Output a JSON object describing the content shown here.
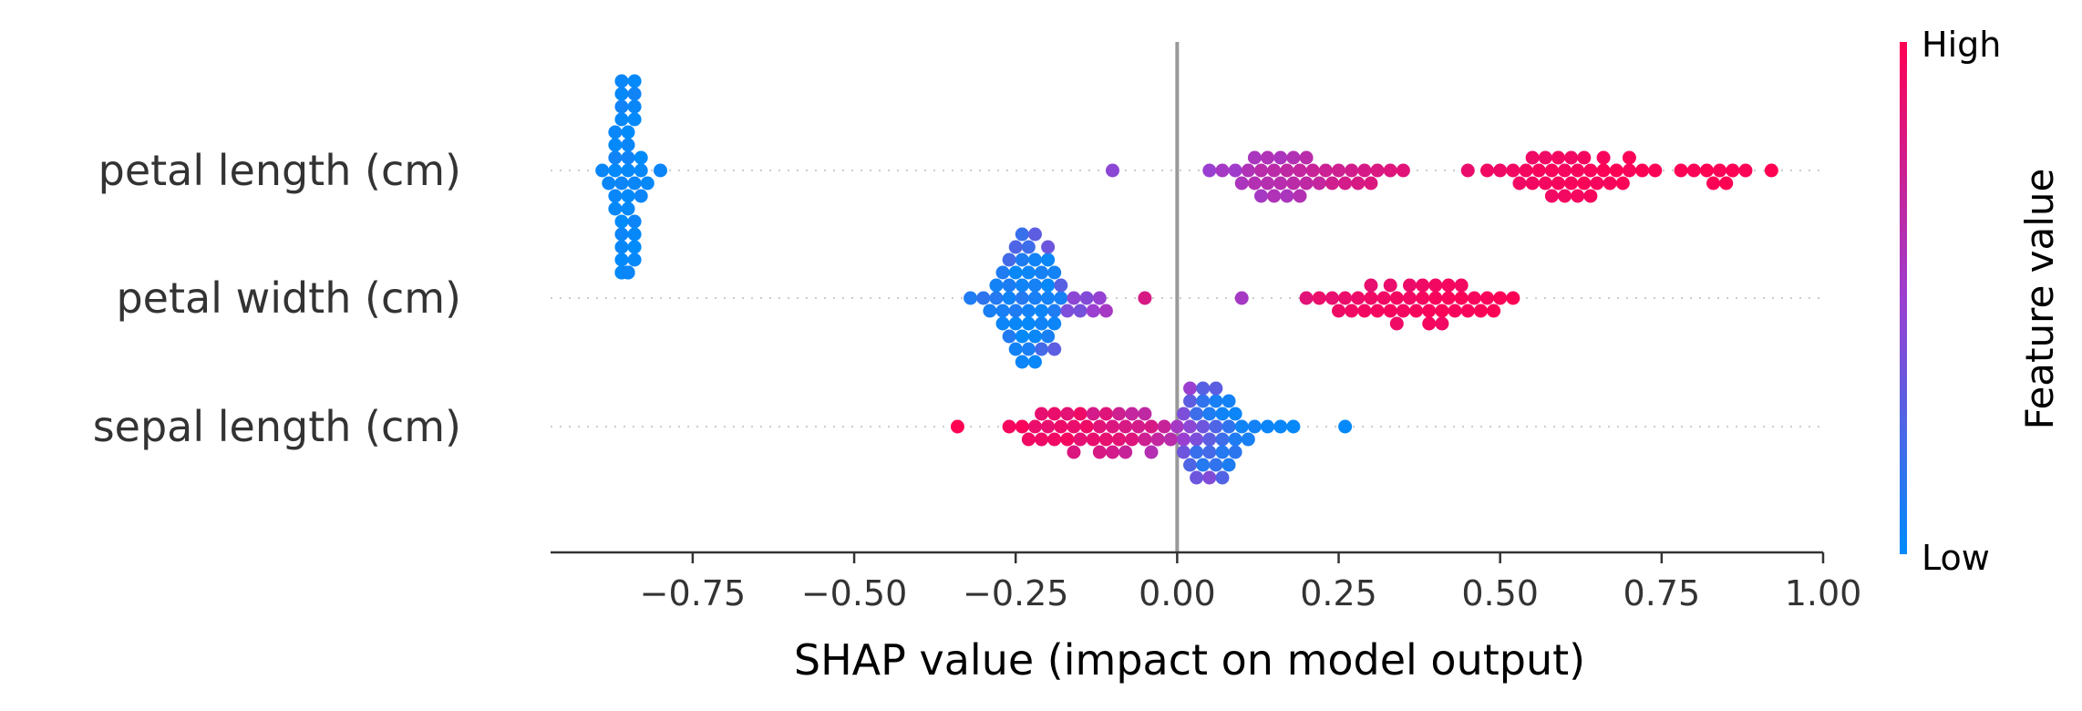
{
  "chart_data": {
    "type": "scatter",
    "subtype": "shap-beeswarm-summary",
    "title": "",
    "xlabel": "SHAP value (impact on model output)",
    "ylabel": "",
    "xlim": [
      -0.97,
      1.0
    ],
    "xticks": [
      -0.75,
      -0.5,
      -0.25,
      0.0,
      0.25,
      0.5,
      0.75,
      1.0
    ],
    "xtick_labels": [
      "−0.75",
      "−0.50",
      "−0.25",
      "0.00",
      "0.25",
      "0.50",
      "0.75",
      "1.00"
    ],
    "zero_line": 0.0,
    "grid": false,
    "colorbar": {
      "label": "Feature value",
      "high_label": "High",
      "low_label": "Low",
      "low_color": "#008bfb",
      "mid_color": "#9b3fd0",
      "high_color": "#ff0052"
    },
    "features": [
      {
        "name": "petal length (cm)",
        "points": [
          [
            -0.85,
            0.02
          ],
          [
            -0.86,
            0.04
          ],
          [
            -0.84,
            0.03
          ],
          [
            -0.87,
            0.01
          ],
          [
            -0.85,
            0.05
          ],
          [
            -0.83,
            0.02
          ],
          [
            -0.86,
            0.0
          ],
          [
            -0.88,
            0.03
          ],
          [
            -0.85,
            0.01
          ],
          [
            -0.84,
            0.04
          ],
          [
            -0.86,
            0.02
          ],
          [
            -0.87,
            0.05
          ],
          [
            -0.85,
            0.03
          ],
          [
            -0.83,
            0.0
          ],
          [
            -0.86,
            0.04
          ],
          [
            -0.84,
            0.01
          ],
          [
            -0.85,
            0.02
          ],
          [
            -0.87,
            0.03
          ],
          [
            -0.86,
            0.05
          ],
          [
            -0.85,
            0.0
          ],
          [
            -0.84,
            0.02
          ],
          [
            -0.86,
            0.03
          ],
          [
            -0.85,
            0.04
          ],
          [
            -0.87,
            0.01
          ],
          [
            -0.84,
            0.03
          ],
          [
            -0.86,
            0.02
          ],
          [
            -0.85,
            0.05
          ],
          [
            -0.83,
            0.04
          ],
          [
            -0.86,
            0.01
          ],
          [
            -0.85,
            0.03
          ],
          [
            -0.84,
            0.0
          ],
          [
            -0.87,
            0.02
          ],
          [
            -0.85,
            0.04
          ],
          [
            -0.86,
            0.03
          ],
          [
            -0.84,
            0.05
          ],
          [
            -0.85,
            0.01
          ],
          [
            -0.86,
            0.02
          ],
          [
            -0.85,
            0.03
          ],
          [
            -0.84,
            0.02
          ],
          [
            -0.86,
            0.04
          ],
          [
            -0.85,
            0.0
          ],
          [
            -0.87,
            0.03
          ],
          [
            -0.84,
            0.01
          ],
          [
            -0.86,
            0.05
          ],
          [
            -0.85,
            0.02
          ],
          [
            -0.89,
            0.03
          ],
          [
            -0.82,
            0.02
          ],
          [
            -0.8,
            0.04
          ],
          [
            -0.85,
            0.03
          ],
          [
            -0.86,
            0.01
          ],
          [
            -0.1,
            0.45
          ],
          [
            0.05,
            0.5
          ],
          [
            0.07,
            0.55
          ],
          [
            0.09,
            0.52
          ],
          [
            0.1,
            0.58
          ],
          [
            0.11,
            0.6
          ],
          [
            0.12,
            0.62
          ],
          [
            0.13,
            0.65
          ],
          [
            0.14,
            0.63
          ],
          [
            0.15,
            0.66
          ],
          [
            0.16,
            0.64
          ],
          [
            0.17,
            0.68
          ],
          [
            0.18,
            0.66
          ],
          [
            0.19,
            0.7
          ],
          [
            0.2,
            0.68
          ],
          [
            0.21,
            0.72
          ],
          [
            0.22,
            0.7
          ],
          [
            0.13,
            0.55
          ],
          [
            0.15,
            0.6
          ],
          [
            0.17,
            0.58
          ],
          [
            0.19,
            0.62
          ],
          [
            0.23,
            0.74
          ],
          [
            0.24,
            0.76
          ],
          [
            0.25,
            0.75
          ],
          [
            0.26,
            0.78
          ],
          [
            0.27,
            0.77
          ],
          [
            0.28,
            0.8
          ],
          [
            0.29,
            0.79
          ],
          [
            0.3,
            0.82
          ],
          [
            0.31,
            0.81
          ],
          [
            0.33,
            0.83
          ],
          [
            0.35,
            0.85
          ],
          [
            0.14,
            0.6
          ],
          [
            0.16,
            0.58
          ],
          [
            0.18,
            0.61
          ],
          [
            0.12,
            0.57
          ],
          [
            0.2,
            0.65
          ],
          [
            0.45,
            0.9
          ],
          [
            0.48,
            0.93
          ],
          [
            0.5,
            0.92
          ],
          [
            0.52,
            0.94
          ],
          [
            0.53,
            0.93
          ],
          [
            0.54,
            0.95
          ],
          [
            0.55,
            0.94
          ],
          [
            0.56,
            0.96
          ],
          [
            0.57,
            0.95
          ],
          [
            0.58,
            0.97
          ],
          [
            0.59,
            0.96
          ],
          [
            0.6,
            0.95
          ],
          [
            0.61,
            0.97
          ],
          [
            0.62,
            0.96
          ],
          [
            0.63,
            0.98
          ],
          [
            0.64,
            0.97
          ],
          [
            0.65,
            0.96
          ],
          [
            0.66,
            0.98
          ],
          [
            0.67,
            0.97
          ],
          [
            0.68,
            0.99
          ],
          [
            0.69,
            0.98
          ],
          [
            0.7,
            0.97
          ],
          [
            0.72,
            0.99
          ],
          [
            0.74,
            0.98
          ],
          [
            0.58,
            0.93
          ],
          [
            0.6,
            0.94
          ],
          [
            0.62,
            0.95
          ],
          [
            0.64,
            0.96
          ],
          [
            0.57,
            0.92
          ],
          [
            0.61,
            0.93
          ],
          [
            0.59,
            0.94
          ],
          [
            0.63,
            0.95
          ],
          [
            0.78,
            0.99
          ],
          [
            0.8,
            0.98
          ],
          [
            0.82,
            1.0
          ],
          [
            0.83,
            0.99
          ],
          [
            0.84,
            0.98
          ],
          [
            0.85,
            1.0
          ],
          [
            0.86,
            0.99
          ],
          [
            0.88,
            0.98
          ],
          [
            0.92,
            1.0
          ],
          [
            0.55,
            0.92
          ],
          [
            0.66,
            0.96
          ],
          [
            0.7,
            0.98
          ]
        ]
      },
      {
        "name": "petal width (cm)",
        "points": [
          [
            -0.32,
            0.1
          ],
          [
            -0.3,
            0.15
          ],
          [
            -0.28,
            0.12
          ],
          [
            -0.27,
            0.08
          ],
          [
            -0.26,
            0.05
          ],
          [
            -0.25,
            0.1
          ],
          [
            -0.24,
            0.12
          ],
          [
            -0.23,
            0.06
          ],
          [
            -0.22,
            0.08
          ],
          [
            -0.21,
            0.04
          ],
          [
            -0.2,
            0.06
          ],
          [
            -0.19,
            0.1
          ],
          [
            -0.25,
            0.03
          ],
          [
            -0.24,
            0.05
          ],
          [
            -0.23,
            0.02
          ],
          [
            -0.22,
            0.07
          ],
          [
            -0.26,
            0.09
          ],
          [
            -0.27,
            0.04
          ],
          [
            -0.28,
            0.06
          ],
          [
            -0.29,
            0.08
          ],
          [
            -0.25,
            0.02
          ],
          [
            -0.24,
            0.01
          ],
          [
            -0.23,
            0.04
          ],
          [
            -0.22,
            0.03
          ],
          [
            -0.21,
            0.05
          ],
          [
            -0.2,
            0.02
          ],
          [
            -0.19,
            0.04
          ],
          [
            -0.18,
            0.07
          ],
          [
            -0.26,
            0.11
          ],
          [
            -0.24,
            0.09
          ],
          [
            -0.22,
            0.05
          ],
          [
            -0.2,
            0.08
          ],
          [
            -0.25,
            0.06
          ],
          [
            -0.23,
            0.08
          ],
          [
            -0.21,
            0.07
          ],
          [
            -0.27,
            0.1
          ],
          [
            -0.24,
            0.04
          ],
          [
            -0.22,
            0.02
          ],
          [
            -0.2,
            0.03
          ],
          [
            -0.19,
            0.06
          ],
          [
            -0.23,
            0.2
          ],
          [
            -0.25,
            0.25
          ],
          [
            -0.24,
            0.18
          ],
          [
            -0.22,
            0.3
          ],
          [
            -0.21,
            0.22
          ],
          [
            -0.2,
            0.35
          ],
          [
            -0.18,
            0.28
          ],
          [
            -0.17,
            0.4
          ],
          [
            -0.16,
            0.45
          ],
          [
            -0.15,
            0.38
          ],
          [
            -0.14,
            0.42
          ],
          [
            -0.13,
            0.5
          ],
          [
            -0.12,
            0.48
          ],
          [
            -0.11,
            0.55
          ],
          [
            -0.19,
            0.3
          ],
          [
            -0.26,
            0.22
          ],
          [
            -0.05,
            0.8
          ],
          [
            0.1,
            0.55
          ],
          [
            0.2,
            0.85
          ],
          [
            0.22,
            0.9
          ],
          [
            0.24,
            0.88
          ],
          [
            0.25,
            0.92
          ],
          [
            0.26,
            0.9
          ],
          [
            0.27,
            0.93
          ],
          [
            0.28,
            0.91
          ],
          [
            0.29,
            0.94
          ],
          [
            0.3,
            0.92
          ],
          [
            0.31,
            0.95
          ],
          [
            0.32,
            0.93
          ],
          [
            0.33,
            0.96
          ],
          [
            0.34,
            0.94
          ],
          [
            0.35,
            0.95
          ],
          [
            0.36,
            0.93
          ],
          [
            0.37,
            0.96
          ],
          [
            0.38,
            0.95
          ],
          [
            0.39,
            0.97
          ],
          [
            0.4,
            0.96
          ],
          [
            0.41,
            0.98
          ],
          [
            0.42,
            0.97
          ],
          [
            0.43,
            0.96
          ],
          [
            0.44,
            0.98
          ],
          [
            0.45,
            0.97
          ],
          [
            0.46,
            0.96
          ],
          [
            0.47,
            0.98
          ],
          [
            0.48,
            0.97
          ],
          [
            0.49,
            0.99
          ],
          [
            0.5,
            0.98
          ],
          [
            0.52,
            0.99
          ],
          [
            0.38,
            0.92
          ],
          [
            0.4,
            0.94
          ],
          [
            0.42,
            0.95
          ],
          [
            0.33,
            0.9
          ],
          [
            0.3,
            0.88
          ],
          [
            0.36,
            0.91
          ],
          [
            0.41,
            0.93
          ],
          [
            0.39,
            0.95
          ],
          [
            0.34,
            0.92
          ],
          [
            0.44,
            0.94
          ]
        ]
      },
      {
        "name": "sepal length (cm)",
        "points": [
          [
            -0.34,
            1.0
          ],
          [
            -0.26,
            0.95
          ],
          [
            -0.24,
            0.97
          ],
          [
            -0.22,
            0.9
          ],
          [
            -0.21,
            0.92
          ],
          [
            -0.2,
            0.88
          ],
          [
            -0.19,
            0.93
          ],
          [
            -0.18,
            0.91
          ],
          [
            -0.17,
            0.95
          ],
          [
            -0.16,
            0.9
          ],
          [
            -0.15,
            0.87
          ],
          [
            -0.14,
            0.92
          ],
          [
            -0.13,
            0.89
          ],
          [
            -0.12,
            0.85
          ],
          [
            -0.11,
            0.88
          ],
          [
            -0.1,
            0.82
          ],
          [
            -0.09,
            0.86
          ],
          [
            -0.08,
            0.8
          ],
          [
            -0.07,
            0.83
          ],
          [
            -0.06,
            0.78
          ],
          [
            -0.05,
            0.75
          ],
          [
            -0.04,
            0.8
          ],
          [
            -0.03,
            0.7
          ],
          [
            -0.02,
            0.72
          ],
          [
            -0.01,
            0.65
          ],
          [
            -0.23,
            0.93
          ],
          [
            -0.21,
            0.88
          ],
          [
            -0.19,
            0.9
          ],
          [
            -0.17,
            0.86
          ],
          [
            -0.15,
            0.92
          ],
          [
            -0.12,
            0.8
          ],
          [
            -0.1,
            0.78
          ],
          [
            -0.09,
            0.75
          ],
          [
            -0.07,
            0.7
          ],
          [
            -0.05,
            0.68
          ],
          [
            -0.04,
            0.62
          ],
          [
            -0.08,
            0.72
          ],
          [
            -0.11,
            0.84
          ],
          [
            -0.13,
            0.78
          ],
          [
            -0.16,
            0.82
          ],
          [
            0.0,
            0.55
          ],
          [
            0.01,
            0.5
          ],
          [
            0.02,
            0.45
          ],
          [
            0.03,
            0.4
          ],
          [
            0.04,
            0.35
          ],
          [
            0.05,
            0.3
          ],
          [
            0.06,
            0.25
          ],
          [
            0.07,
            0.2
          ],
          [
            0.08,
            0.15
          ],
          [
            0.09,
            0.1
          ],
          [
            0.02,
            0.3
          ],
          [
            0.03,
            0.2
          ],
          [
            0.04,
            0.15
          ],
          [
            0.05,
            0.1
          ],
          [
            0.06,
            0.08
          ],
          [
            0.07,
            0.05
          ],
          [
            0.08,
            0.06
          ],
          [
            0.09,
            0.04
          ],
          [
            0.1,
            0.05
          ],
          [
            0.01,
            0.4
          ],
          [
            0.02,
            0.25
          ],
          [
            0.03,
            0.18
          ],
          [
            0.04,
            0.12
          ],
          [
            0.05,
            0.22
          ],
          [
            0.06,
            0.16
          ],
          [
            0.07,
            0.12
          ],
          [
            0.08,
            0.09
          ],
          [
            0.03,
            0.35
          ],
          [
            0.05,
            0.42
          ],
          [
            0.06,
            0.3
          ],
          [
            0.04,
            0.28
          ],
          [
            0.02,
            0.5
          ],
          [
            0.01,
            0.35
          ],
          [
            0.07,
            0.26
          ],
          [
            0.09,
            0.14
          ],
          [
            0.11,
            0.08
          ],
          [
            0.12,
            0.06
          ],
          [
            0.14,
            0.04
          ],
          [
            0.16,
            0.03
          ],
          [
            0.18,
            0.02
          ],
          [
            0.26,
            0.01
          ]
        ]
      }
    ]
  }
}
